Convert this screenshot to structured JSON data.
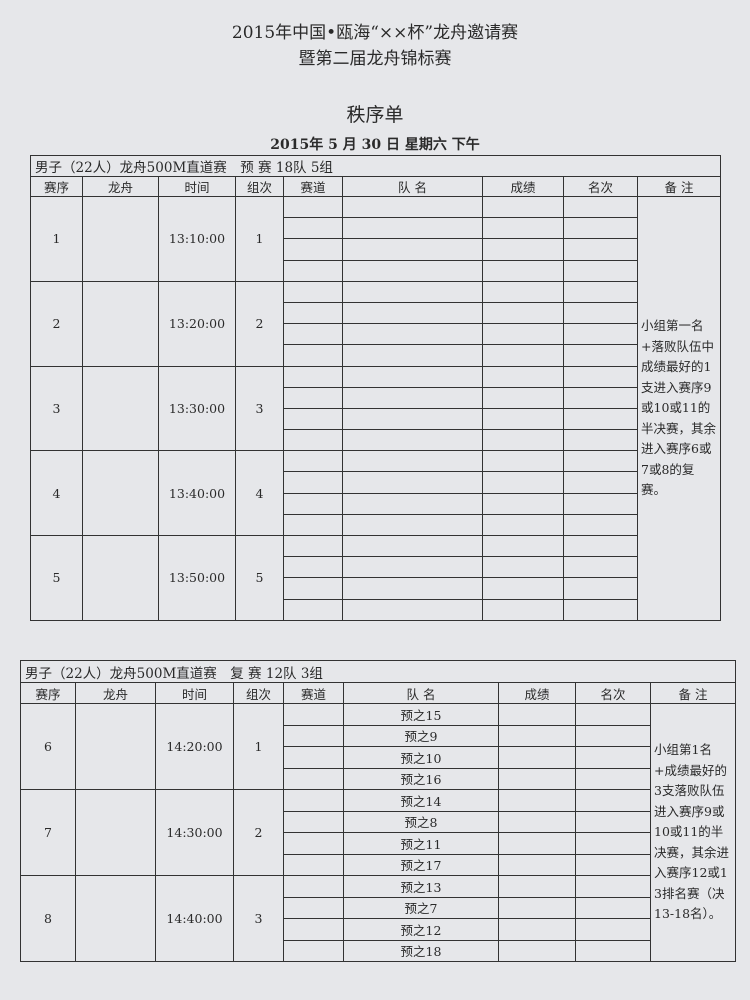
{
  "header": {
    "title_line1": "2015年中国•瓯海“××杯”龙舟邀请赛",
    "title_line2": "暨第二届龙舟锦标赛",
    "subtitle": "秩序单",
    "date": "2015年 5 月 30 日 星期六 下午"
  },
  "columns": [
    "赛序",
    "龙舟",
    "时间",
    "组次",
    "赛道",
    "队 名",
    "成绩",
    "名次",
    "备 注"
  ],
  "table1": {
    "caption": "男子（22人）龙舟500M直道赛　预 赛 18队 5组",
    "note": "小组第一名+落败队伍中成绩最好的1支进入赛序9或10或11的半决赛，其余进入赛序6或7或8的复赛。",
    "groups": [
      {
        "seq": "1",
        "time": "13:10:00",
        "group": "1",
        "teams": [
          "",
          "",
          "",
          ""
        ]
      },
      {
        "seq": "2",
        "time": "13:20:00",
        "group": "2",
        "teams": [
          "",
          "",
          "",
          ""
        ]
      },
      {
        "seq": "3",
        "time": "13:30:00",
        "group": "3",
        "teams": [
          "",
          "",
          "",
          ""
        ]
      },
      {
        "seq": "4",
        "time": "13:40:00",
        "group": "4",
        "teams": [
          "",
          "",
          "",
          ""
        ]
      },
      {
        "seq": "5",
        "time": "13:50:00",
        "group": "5",
        "teams": [
          "",
          "",
          "",
          ""
        ]
      }
    ]
  },
  "table2": {
    "caption": "男子（22人）龙舟500M直道赛　复 赛 12队 3组",
    "note": "小组第1名+成绩最好的3支落败队伍进入赛序9或10或11的半决赛，其余进入赛序12或13排名赛（决13-18名）。",
    "groups": [
      {
        "seq": "6",
        "time": "14:20:00",
        "group": "1",
        "teams": [
          "预之15",
          "预之9",
          "预之10",
          "预之16"
        ]
      },
      {
        "seq": "7",
        "time": "14:30:00",
        "group": "2",
        "teams": [
          "预之14",
          "预之8",
          "预之11",
          "预之17"
        ]
      },
      {
        "seq": "8",
        "time": "14:40:00",
        "group": "3",
        "teams": [
          "预之13",
          "预之7",
          "预之12",
          "预之18"
        ]
      }
    ]
  }
}
